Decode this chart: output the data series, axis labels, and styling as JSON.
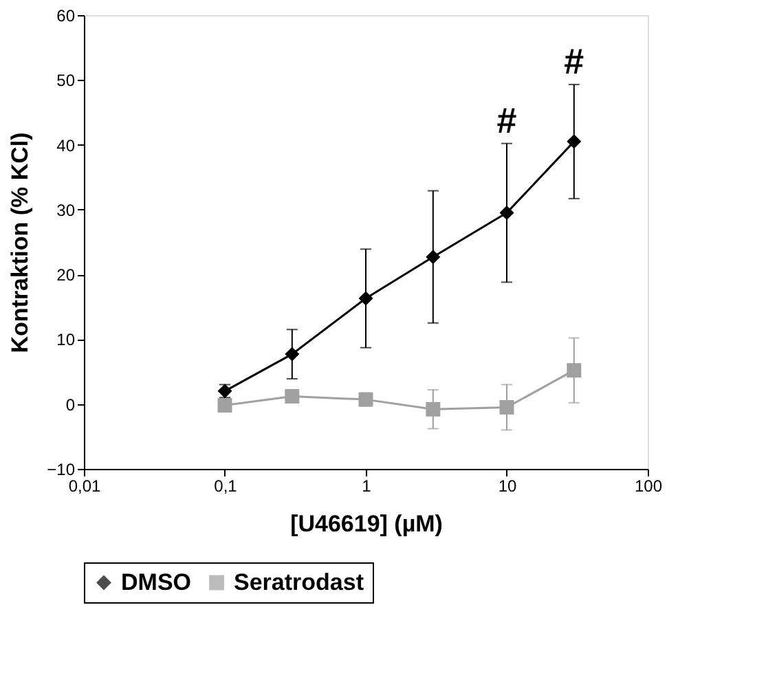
{
  "chart_data": {
    "type": "line",
    "xlabel": "[U46619] (µM)",
    "ylabel": "Kontraktion (% KCl)",
    "x": [
      0.1,
      0.3,
      1,
      3,
      10,
      30
    ],
    "series": [
      {
        "name": "DMSO",
        "color": "#000000",
        "marker": "diamond",
        "values": [
          2,
          7.7,
          16.3,
          22.7,
          29.5,
          40.5
        ],
        "errors": [
          1,
          3.8,
          7.6,
          10.2,
          10.7,
          8.8
        ]
      },
      {
        "name": "Seratrodast",
        "color": "#a0a0a0",
        "marker": "square",
        "values": [
          -0.2,
          1.2,
          0.7,
          -0.8,
          -0.5,
          5.2
        ],
        "errors": [
          1,
          0.5,
          1,
          3,
          3.5,
          5
        ]
      }
    ],
    "log": "x",
    "xlim": [
      0.01,
      100
    ],
    "xticks": [
      {
        "value": 0.01,
        "label": "0,01"
      },
      {
        "value": 0.1,
        "label": "0,1"
      },
      1,
      10,
      100
    ],
    "ylim": [
      -10,
      60
    ],
    "yticks": [
      -10,
      0,
      10,
      20,
      30,
      40,
      50,
      60
    ],
    "grid": false,
    "legend": "bottom",
    "line_style": "solid",
    "annotations": [
      {
        "text": "#",
        "x": 10,
        "y": 40.2
      },
      {
        "text": "#",
        "x": 30,
        "y": 49.3
      }
    ]
  }
}
